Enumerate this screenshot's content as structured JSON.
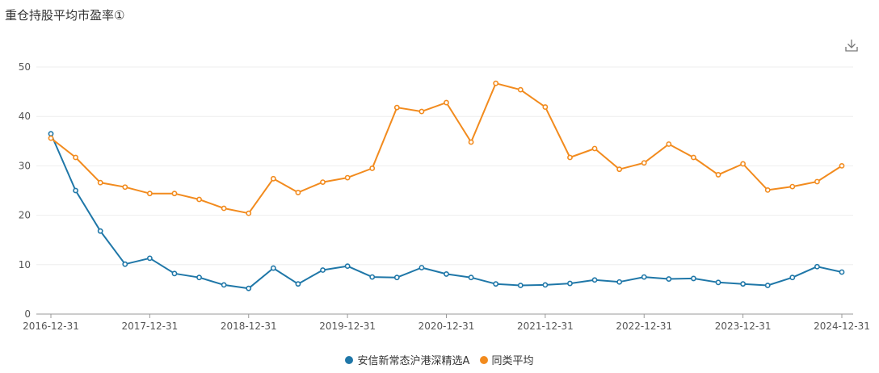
{
  "title": "重仓持股平均市盈率①",
  "download_icon": "download-icon",
  "colors": {
    "fund": "#1f77a8",
    "avg": "#f28b1e",
    "grid": "#eeeeee",
    "axis": "#999999"
  },
  "chart_data": {
    "type": "line",
    "ylim": [
      0,
      50
    ],
    "yticks": [
      0,
      10,
      20,
      30,
      40,
      50
    ],
    "xtick_labels": [
      "2016-12-31",
      "2017-12-31",
      "2018-12-31",
      "2019-12-31",
      "2020-12-31",
      "2021-12-31",
      "2022-12-31",
      "2023-12-31",
      "2024-12-31"
    ],
    "x": [
      "2016-12-31",
      "2017-03-31",
      "2017-06-30",
      "2017-09-30",
      "2017-12-31",
      "2018-03-31",
      "2018-06-30",
      "2018-09-30",
      "2018-12-31",
      "2019-03-31",
      "2019-06-30",
      "2019-09-30",
      "2019-12-31",
      "2020-03-31",
      "2020-06-30",
      "2020-09-30",
      "2020-12-31",
      "2021-03-31",
      "2021-06-30",
      "2021-09-30",
      "2021-12-31",
      "2022-03-31",
      "2022-06-30",
      "2022-09-30",
      "2022-12-31",
      "2023-03-31",
      "2023-06-30",
      "2023-09-30",
      "2023-12-31",
      "2024-03-31",
      "2024-06-30",
      "2024-09-30",
      "2024-12-31"
    ],
    "series": [
      {
        "name": "安信新常态沪港深精选A",
        "color": "#1f77a8",
        "values": [
          36.5,
          25.0,
          16.8,
          10.1,
          11.3,
          8.2,
          7.4,
          5.9,
          5.2,
          9.3,
          6.1,
          8.9,
          9.7,
          7.5,
          7.4,
          9.4,
          8.1,
          7.4,
          6.1,
          5.8,
          5.9,
          6.2,
          6.9,
          6.5,
          7.5,
          7.1,
          7.2,
          6.4,
          6.1,
          5.8,
          7.4,
          9.6,
          8.5
        ]
      },
      {
        "name": "同类平均",
        "color": "#f28b1e",
        "values": [
          35.6,
          31.7,
          26.6,
          25.7,
          24.4,
          24.4,
          23.2,
          21.4,
          20.4,
          27.4,
          24.6,
          26.7,
          27.6,
          29.5,
          41.8,
          41.0,
          42.8,
          34.8,
          46.7,
          45.4,
          41.9,
          31.7,
          33.5,
          29.3,
          30.6,
          34.4,
          31.7,
          28.2,
          30.4,
          25.1,
          25.8,
          26.8,
          30.0
        ]
      }
    ],
    "legend_position": "bottom-center",
    "grid": true
  }
}
